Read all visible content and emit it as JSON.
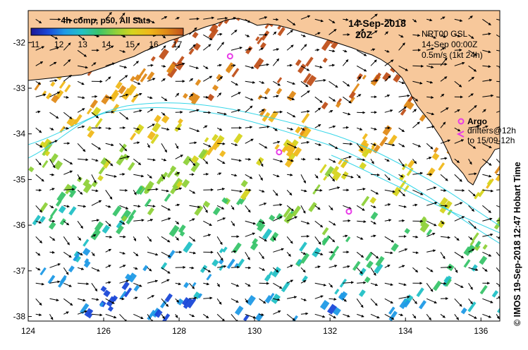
{
  "colorbar": {
    "title": "4h comp, p50, All Sats",
    "ticks": [
      "11",
      "12",
      "13",
      "14",
      "15",
      "16",
      "17"
    ],
    "colors": [
      "#1b1796",
      "#1a48d8",
      "#1f9ae6",
      "#22c1c6",
      "#39c46a",
      "#8ed13a",
      "#d6d41e",
      "#f0b81a",
      "#e08a18",
      "#c0501a"
    ]
  },
  "header": {
    "date": "14-Sep-2018",
    "time": "20Z"
  },
  "info": {
    "line1": "NRT00 GSL",
    "line2": "14-Sep 00:00Z",
    "line3": "0.5m/s (1kt 24h)"
  },
  "legend": {
    "argo_label": "Argo",
    "drifters_line1": "drifters@12h",
    "drifters_line2": "to 15/09-12h"
  },
  "credit": "© IMOS 19-Sep-2018 12:47 Hobart Time",
  "axes": {
    "x_ticks": [
      "124",
      "126",
      "128",
      "130",
      "132",
      "134",
      "136"
    ],
    "y_ticks": [
      "-32",
      "-33",
      "-34",
      "-35",
      "-36",
      "-37",
      "-38"
    ],
    "xlim": [
      124,
      136.5
    ],
    "ylim": [
      -38.1,
      -31.3
    ]
  },
  "colors": {
    "land": "#f7c89b",
    "ocean": "#ffffff",
    "argo": "#e83ce8",
    "contour": "#36d6e8"
  },
  "argo_floats": [
    {
      "lon": 129.35,
      "lat": -32.3
    },
    {
      "lon": 130.65,
      "lat": -34.4
    },
    {
      "lon": 132.5,
      "lat": -35.7
    }
  ]
}
